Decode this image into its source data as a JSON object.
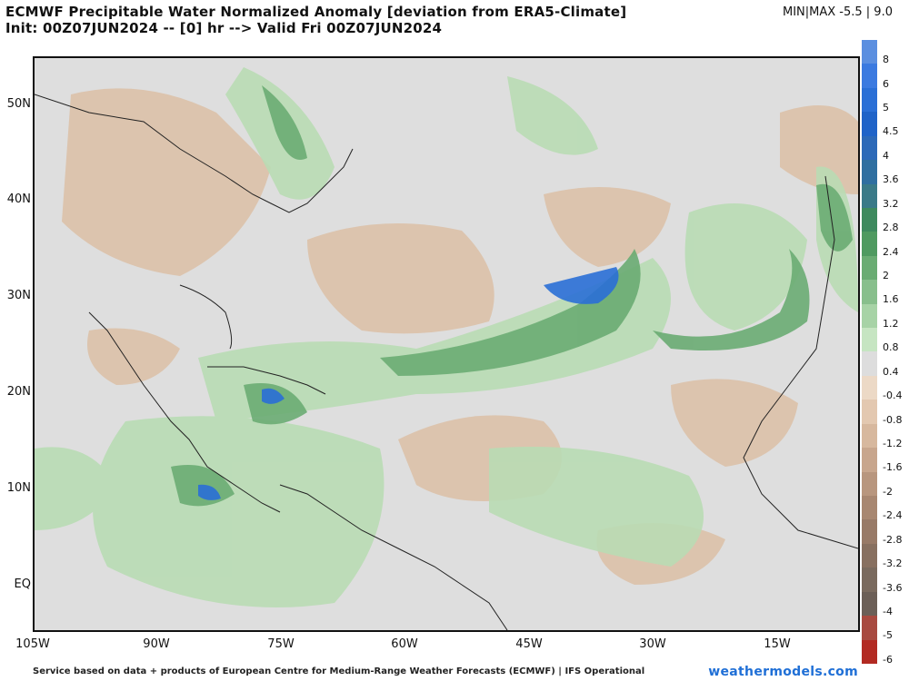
{
  "title_line1": "ECMWF Precipitable Water Normalized Anomaly [deviation from ERA5-Climate]",
  "title_line2": "Init: 00Z07JUN2024 -- [0] hr --> Valid Fri 00Z07JUN2024",
  "minmax": "MIN|MAX -5.5 | 9.0",
  "lat_labels": [
    "50N",
    "40N",
    "30N",
    "20N",
    "10N",
    "EQ"
  ],
  "lon_labels": [
    "105W",
    "90W",
    "75W",
    "60W",
    "45W",
    "30W",
    "15W"
  ],
  "scale": {
    "labels": [
      "8",
      "6",
      "5",
      "4.5",
      "4",
      "3.6",
      "3.2",
      "2.8",
      "2.4",
      "2",
      "1.6",
      "1.2",
      "0.8",
      "0.4",
      "-0.4",
      "-0.8",
      "-1.2",
      "-1.6",
      "-2",
      "-2.4",
      "-2.8",
      "-3.2",
      "-3.6",
      "-4",
      "-5",
      "-6"
    ],
    "colors": [
      "#5b8fe0",
      "#3b7ae0",
      "#2a6fd6",
      "#1f63c8",
      "#2c69b8",
      "#2f6fa0",
      "#3a7a88",
      "#3e8a5e",
      "#4f9a60",
      "#6aac73",
      "#88bf8c",
      "#a7d3a6",
      "#c6e5c2",
      "#dddddd",
      "#ecd9c6",
      "#e3c8b0",
      "#d7b89e",
      "#c8a68d",
      "#b8967e",
      "#a88771",
      "#987a67",
      "#887060",
      "#7a6a5e",
      "#6c5f57",
      "#a84a40",
      "#b22a22"
    ]
  },
  "footer": "Service based on data + products of European Centre for Medium-Range Weather Forecasts (ECMWF) | IFS Operational",
  "brand": "weathermodels.com",
  "colors": {
    "neutral": "#dedede",
    "wet": "#3e8a5e",
    "dry": "#d7b89e",
    "very_wet": "#2a6fd6"
  }
}
